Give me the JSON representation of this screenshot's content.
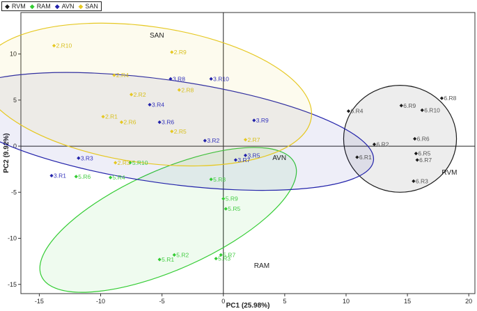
{
  "chart_data": {
    "type": "scatter",
    "title": "",
    "xlabel": "PC1 (25.98%)",
    "ylabel": "PC2 (9.92%)",
    "xlim": [
      -16.5,
      20.5
    ],
    "ylim": [
      -16,
      14.5
    ],
    "xticks": [
      -15,
      -10,
      -5,
      0,
      5,
      10,
      15,
      20
    ],
    "yticks": [
      -15,
      -10,
      -5,
      0,
      5,
      10
    ],
    "legend_position": "top-left",
    "series": [
      {
        "name": "RVM",
        "color": "#1a1a1a",
        "label_color": "#555555",
        "group_label": "RVM",
        "group_label_pos": [
          17.8,
          -3.1
        ],
        "ellipse": {
          "cx": 14.4,
          "cy": 0.8,
          "rx": 4.6,
          "ry": 5.8
        },
        "points": [
          {
            "label": "6.R1",
            "x": 10.9,
            "y": -1.2
          },
          {
            "label": "6.R2",
            "x": 12.3,
            "y": 0.2
          },
          {
            "label": "6.R3",
            "x": 15.5,
            "y": -3.8
          },
          {
            "label": "6.R4",
            "x": 10.2,
            "y": 3.8
          },
          {
            "label": "6.R5",
            "x": 15.7,
            "y": -0.8
          },
          {
            "label": "6.R6",
            "x": 15.6,
            "y": 0.8
          },
          {
            "label": "6.R7",
            "x": 15.8,
            "y": -1.5
          },
          {
            "label": "6.R8",
            "x": 17.8,
            "y": 5.2
          },
          {
            "label": "6.R9",
            "x": 14.5,
            "y": 4.4
          },
          {
            "label": "6.R10",
            "x": 16.2,
            "y": 3.9
          }
        ]
      },
      {
        "name": "RAM",
        "color": "#33cc33",
        "label_color": "#44cc44",
        "group_label": "RAM",
        "group_label_pos": [
          2.5,
          -13.2
        ],
        "ellipse": {
          "cx": -4.5,
          "cy": -8.0,
          "rx": 11.3,
          "ry": 5.4,
          "rotate": -24
        },
        "points": [
          {
            "label": "5.R1",
            "x": -5.2,
            "y": -12.3
          },
          {
            "label": "5.R2",
            "x": -4.0,
            "y": -11.8
          },
          {
            "label": "5.R3",
            "x": -0.6,
            "y": -12.2
          },
          {
            "label": "5.R4",
            "x": -9.2,
            "y": -3.4
          },
          {
            "label": "5.R5",
            "x": 0.2,
            "y": -6.8
          },
          {
            "label": "5.R6",
            "x": -12.0,
            "y": -3.3
          },
          {
            "label": "5.R7",
            "x": -0.2,
            "y": -11.8
          },
          {
            "label": "5.R8",
            "x": -1.0,
            "y": -3.6
          },
          {
            "label": "5.R9",
            "x": 0.0,
            "y": -5.7
          },
          {
            "label": "5.R10",
            "x": -7.6,
            "y": -1.8
          }
        ]
      },
      {
        "name": "AVN",
        "color": "#2222aa",
        "label_color": "#3333bb",
        "group_label": "AVN",
        "group_label_pos": [
          4.0,
          -1.5
        ],
        "ellipse": {
          "cx": -4.8,
          "cy": 1.6,
          "rx": 17.2,
          "ry": 5.6,
          "rotate": 8
        },
        "points": [
          {
            "label": "3.R1",
            "x": -14.0,
            "y": -3.2
          },
          {
            "label": "3.R2",
            "x": -1.5,
            "y": 0.6
          },
          {
            "label": "3.R3",
            "x": -11.8,
            "y": -1.3
          },
          {
            "label": "3.R4",
            "x": -6.0,
            "y": 4.5
          },
          {
            "label": "3.R5",
            "x": 1.8,
            "y": -1.0
          },
          {
            "label": "3.R6",
            "x": -5.2,
            "y": 2.6
          },
          {
            "label": "3.R7",
            "x": 1.0,
            "y": -1.5
          },
          {
            "label": "3.R8",
            "x": -4.3,
            "y": 7.3
          },
          {
            "label": "3.R9",
            "x": 2.5,
            "y": 2.8
          },
          {
            "label": "3.R10",
            "x": -1.0,
            "y": 7.3
          }
        ]
      },
      {
        "name": "SAN",
        "color": "#e6c822",
        "label_color": "#d8c020",
        "group_label": "SAN",
        "group_label_pos": [
          -6.0,
          11.8
        ],
        "ellipse": {
          "cx": -6.3,
          "cy": 5.6,
          "rx": 13.6,
          "ry": 7.4,
          "rotate": 8
        },
        "points": [
          {
            "label": "2.R1",
            "x": -9.8,
            "y": 3.2
          },
          {
            "label": "2.R2",
            "x": -7.5,
            "y": 5.6
          },
          {
            "label": "2.R3",
            "x": -8.8,
            "y": -1.8
          },
          {
            "label": "2.R4",
            "x": -8.9,
            "y": 7.7
          },
          {
            "label": "2.R5",
            "x": -4.2,
            "y": 1.6
          },
          {
            "label": "2.R6",
            "x": -8.3,
            "y": 2.6
          },
          {
            "label": "2.R7",
            "x": 1.8,
            "y": 0.7
          },
          {
            "label": "2.R8",
            "x": -3.6,
            "y": 6.1
          },
          {
            "label": "2.R9",
            "x": -4.2,
            "y": 10.2
          },
          {
            "label": "2.R10",
            "x": -13.8,
            "y": 10.9
          }
        ]
      }
    ]
  }
}
